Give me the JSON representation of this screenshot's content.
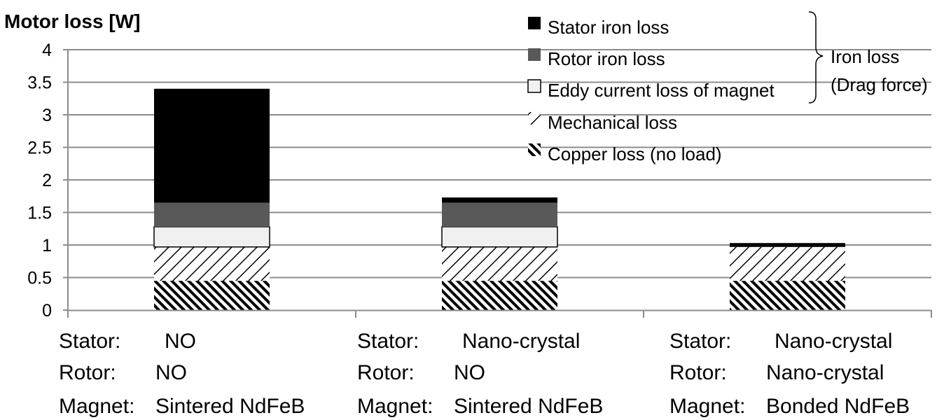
{
  "chart_data": {
    "type": "bar",
    "stacked": true,
    "ylabel": "Motor loss [W]",
    "ylim": [
      0,
      4
    ],
    "yticks": [
      "0",
      "0.5",
      "1",
      "1.5",
      "2",
      "2.5",
      "3",
      "3.5",
      "4"
    ],
    "grid": true,
    "legend_position": "top-right",
    "categories": [
      {
        "lines": [
          "Stator:",
          "Rotor:",
          "Magnet:"
        ],
        "values": [
          "NO",
          "NO",
          "Sintered NdFeB"
        ]
      },
      {
        "lines": [
          "Stator:",
          "Rotor:",
          "Magnet:"
        ],
        "values": [
          "Nano-crystal",
          "NO",
          "Sintered NdFeB"
        ]
      },
      {
        "lines": [
          "Stator:",
          "Rotor:",
          "Magnet:"
        ],
        "values": [
          "Nano-crystal",
          "Nano-crystal",
          "Bonded NdFeB"
        ]
      }
    ],
    "series": [
      {
        "name": "Copper loss (no load)",
        "pattern": "hatch-back",
        "values": [
          0.45,
          0.45,
          0.45
        ]
      },
      {
        "name": "Mechanical loss",
        "pattern": "hatch-forward",
        "values": [
          0.52,
          0.52,
          0.52
        ]
      },
      {
        "name": "Eddy current loss of magnet",
        "color": "#f0f0f0",
        "values": [
          0.31,
          0.31,
          0.0
        ]
      },
      {
        "name": "Rotor iron loss",
        "color": "#595959",
        "values": [
          0.37,
          0.37,
          0.0
        ]
      },
      {
        "name": "Stator iron loss",
        "color": "#000000",
        "values": [
          1.75,
          0.08,
          0.06
        ]
      }
    ],
    "legend_order": [
      "Stator iron loss",
      "Rotor iron loss",
      "Eddy current loss of magnet",
      "Mechanical loss",
      "Copper loss (no load)"
    ],
    "annotation": {
      "lines": [
        "Iron loss",
        "(Drag force)"
      ]
    }
  }
}
